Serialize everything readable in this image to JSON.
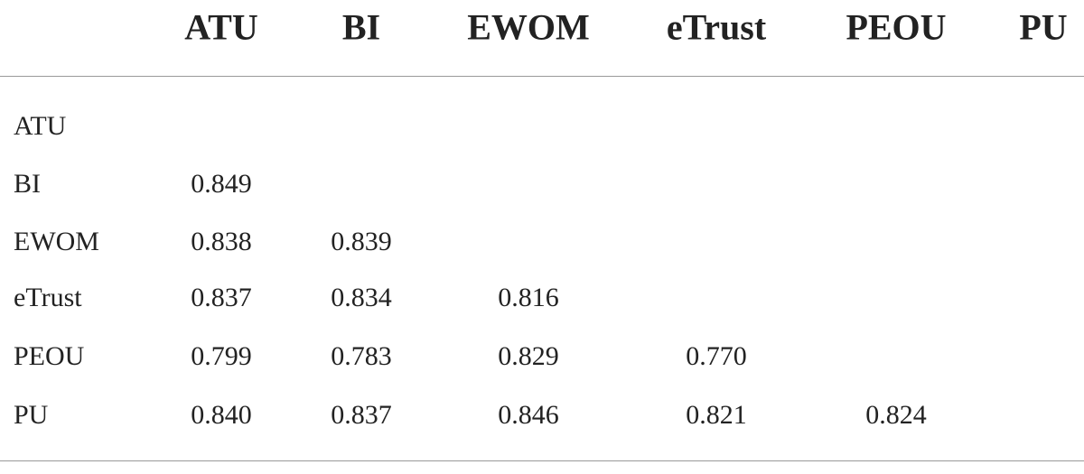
{
  "table": {
    "columns": [
      "ATU",
      "BI",
      "EWOM",
      "eTrust",
      "PEOU",
      "PU"
    ],
    "rows": [
      {
        "label": "ATU",
        "values": []
      },
      {
        "label": "BI",
        "values": [
          "0.849"
        ]
      },
      {
        "label": "EWOM",
        "values": [
          "0.838",
          "0.839"
        ]
      },
      {
        "label": "eTrust",
        "values": [
          "0.837",
          "0.834",
          "0.816"
        ]
      },
      {
        "label": "PEOU",
        "values": [
          "0.799",
          "0.783",
          "0.829",
          "0.770"
        ]
      },
      {
        "label": "PU",
        "values": [
          "0.840",
          "0.837",
          "0.846",
          "0.821",
          "0.824"
        ]
      }
    ]
  }
}
